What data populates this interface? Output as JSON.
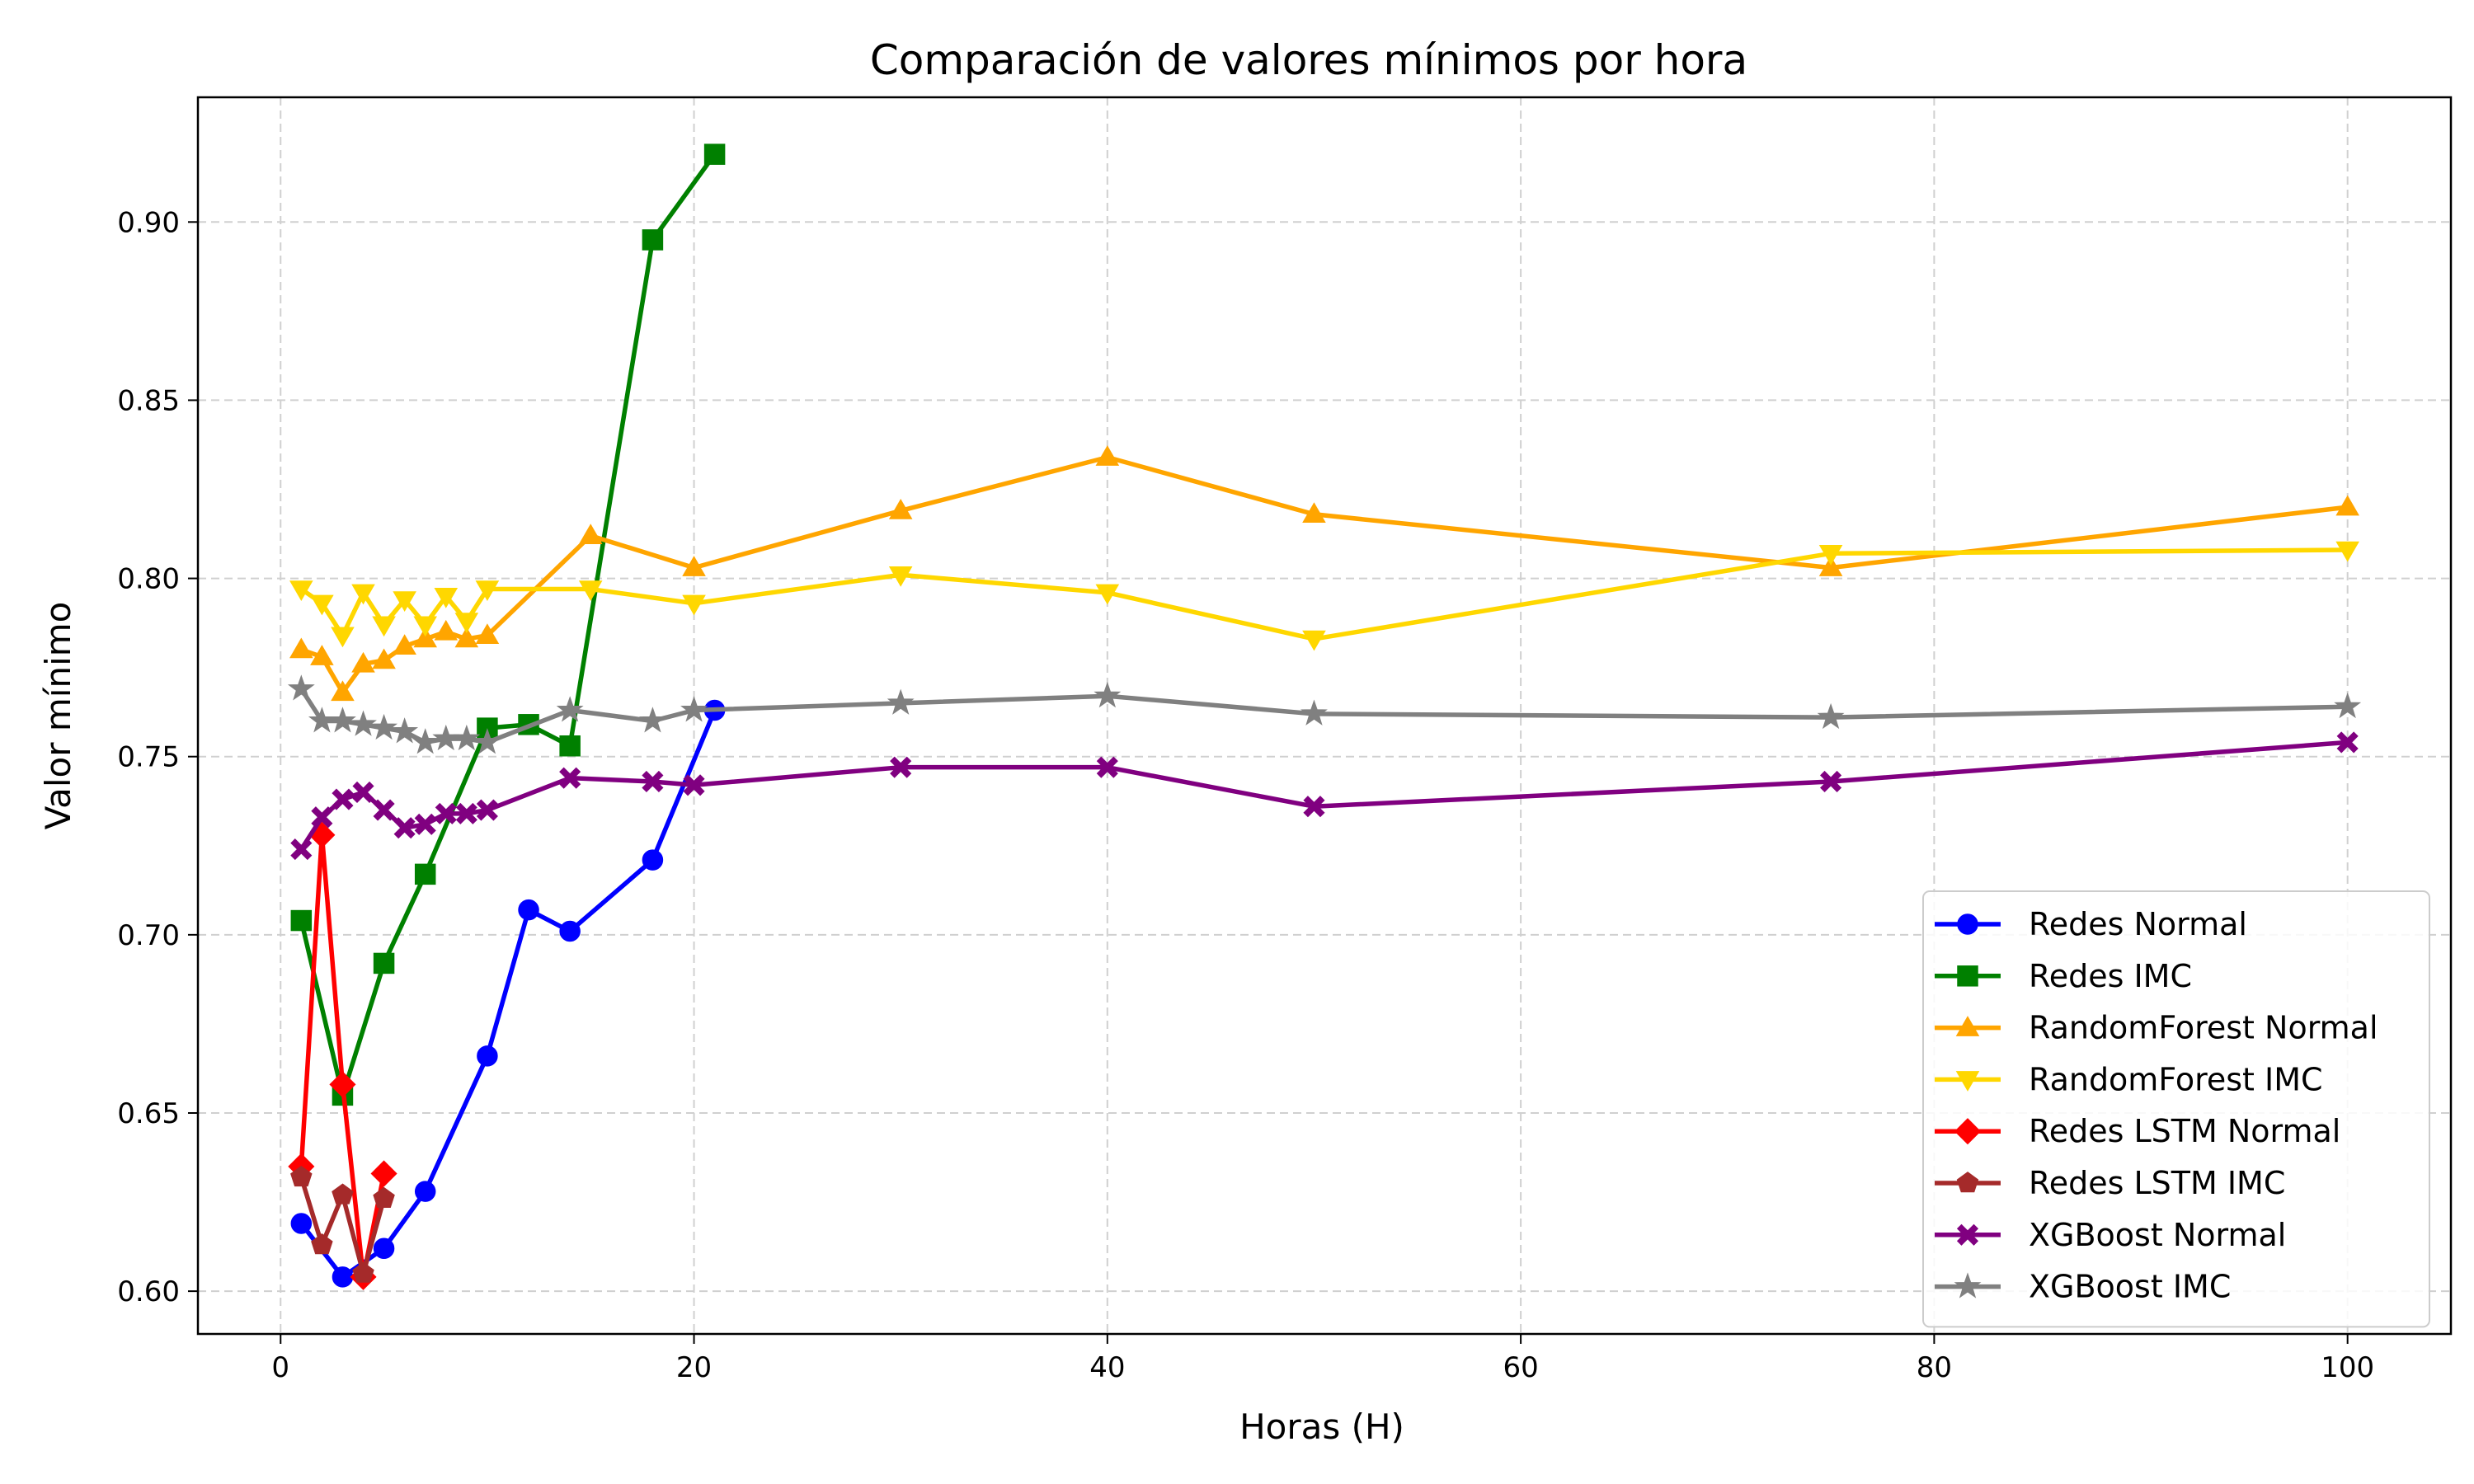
{
  "chart_data": {
    "type": "line",
    "title": "Comparación de valores mínimos por hora",
    "xlabel": "Horas (H)",
    "ylabel": "Valor mínimo",
    "xlim": [
      -4,
      105
    ],
    "ylim": [
      0.588,
      0.935
    ],
    "xticks": [
      0,
      20,
      40,
      60,
      80,
      100
    ],
    "yticks": [
      0.6,
      0.65,
      0.7,
      0.75,
      0.8,
      0.85,
      0.9
    ],
    "xtick_labels": [
      "0",
      "20",
      "40",
      "60",
      "80",
      "100"
    ],
    "ytick_labels": [
      "0.60",
      "0.65",
      "0.70",
      "0.75",
      "0.80",
      "0.85",
      "0.90"
    ],
    "grid": true,
    "legend_position": "lower-right",
    "series": [
      {
        "name": "Redes Normal",
        "color": "#0000ff",
        "marker": "circle",
        "x": [
          1,
          3,
          5,
          7,
          10,
          12,
          14,
          18,
          21
        ],
        "y": [
          0.619,
          0.604,
          0.612,
          0.628,
          0.666,
          0.707,
          0.701,
          0.721,
          0.763
        ]
      },
      {
        "name": "Redes IMC",
        "color": "#008000",
        "marker": "square",
        "x": [
          1,
          3,
          5,
          7,
          10,
          12,
          14,
          18,
          21
        ],
        "y": [
          0.704,
          0.655,
          0.692,
          0.717,
          0.758,
          0.759,
          0.753,
          0.895,
          0.919
        ]
      },
      {
        "name": "RandomForest Normal",
        "color": "#ffa500",
        "marker": "triangle-up",
        "x": [
          1,
          2,
          3,
          4,
          5,
          6,
          7,
          8,
          9,
          10,
          15,
          20,
          30,
          40,
          50,
          75,
          100
        ],
        "y": [
          0.78,
          0.778,
          0.768,
          0.776,
          0.777,
          0.781,
          0.783,
          0.785,
          0.783,
          0.784,
          0.812,
          0.803,
          0.819,
          0.834,
          0.818,
          0.803,
          0.82
        ]
      },
      {
        "name": "RandomForest IMC",
        "color": "#ffd700",
        "marker": "triangle-down",
        "x": [
          1,
          2,
          3,
          4,
          5,
          6,
          7,
          8,
          9,
          10,
          15,
          20,
          30,
          40,
          50,
          75,
          100
        ],
        "y": [
          0.797,
          0.793,
          0.784,
          0.796,
          0.787,
          0.794,
          0.787,
          0.795,
          0.788,
          0.797,
          0.797,
          0.793,
          0.801,
          0.796,
          0.783,
          0.807,
          0.808
        ]
      },
      {
        "name": "Redes LSTM Normal",
        "color": "#ff0000",
        "marker": "diamond",
        "x": [
          1,
          2,
          3,
          4,
          5
        ],
        "y": [
          0.635,
          0.728,
          0.658,
          0.604,
          0.633
        ]
      },
      {
        "name": "Redes LSTM IMC",
        "color": "#a52a2a",
        "marker": "pentagon",
        "x": [
          1,
          2,
          3,
          4,
          5
        ],
        "y": [
          0.632,
          0.613,
          0.627,
          0.605,
          0.626
        ]
      },
      {
        "name": "XGBoost Normal",
        "color": "#800080",
        "marker": "x",
        "x": [
          1,
          2,
          3,
          4,
          5,
          6,
          7,
          8,
          9,
          10,
          14,
          18,
          20,
          30,
          40,
          50,
          75,
          100
        ],
        "y": [
          0.724,
          0.733,
          0.738,
          0.74,
          0.735,
          0.73,
          0.731,
          0.734,
          0.734,
          0.735,
          0.744,
          0.743,
          0.742,
          0.747,
          0.747,
          0.736,
          0.743,
          0.754
        ]
      },
      {
        "name": "XGBoost IMC",
        "color": "#808080",
        "marker": "star",
        "x": [
          1,
          2,
          3,
          4,
          5,
          6,
          7,
          8,
          9,
          10,
          14,
          18,
          20,
          30,
          40,
          50,
          75,
          100
        ],
        "y": [
          0.769,
          0.76,
          0.76,
          0.759,
          0.758,
          0.757,
          0.754,
          0.755,
          0.755,
          0.754,
          0.763,
          0.76,
          0.763,
          0.765,
          0.767,
          0.762,
          0.761,
          0.764
        ]
      }
    ]
  }
}
